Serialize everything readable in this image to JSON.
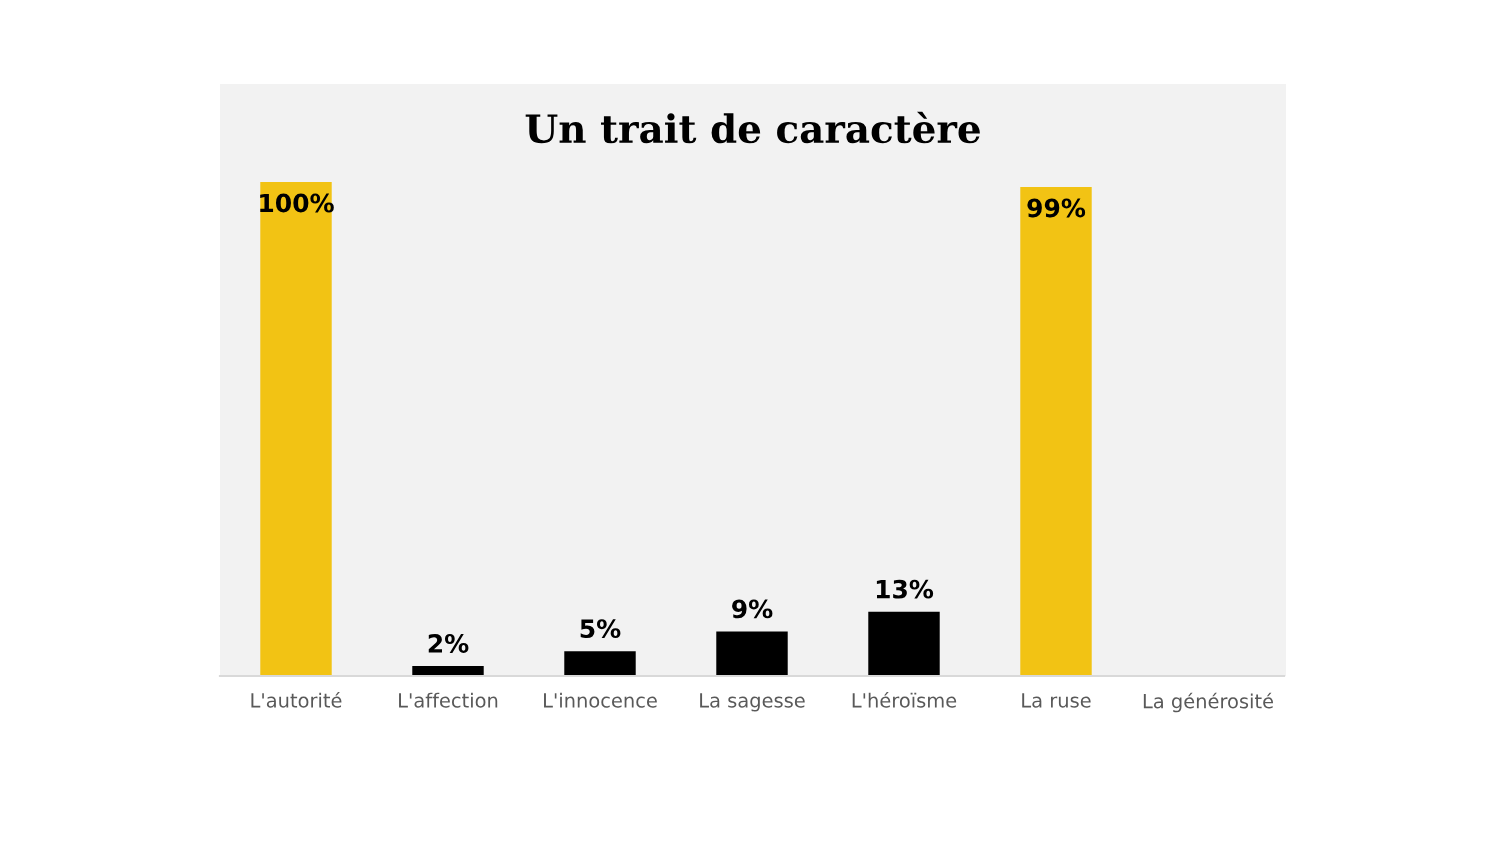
{
  "chart_data": {
    "type": "bar",
    "title": "Un trait de caractère",
    "categories": [
      "L'autorité",
      "L'affection",
      "L'innocence",
      "La sagesse",
      "L'héroïsme",
      "La ruse",
      "La générosité"
    ],
    "values": [
      100,
      2,
      5,
      9,
      13,
      99,
      null
    ],
    "colors": [
      "#f2c314",
      "#000000",
      "#000000",
      "#000000",
      "#000000",
      "#f2c314",
      "#000000"
    ],
    "value_labels": [
      "100%",
      "2%",
      "5%",
      "9%",
      "13%",
      "99%",
      null
    ],
    "legend": false
  }
}
